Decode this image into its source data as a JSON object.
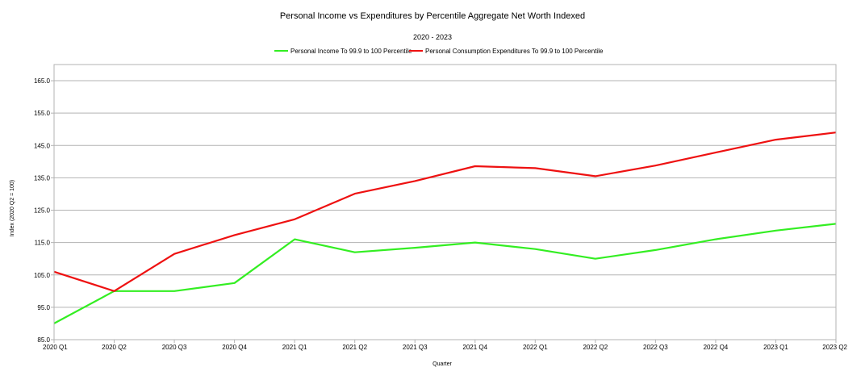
{
  "chart_data": {
    "type": "line",
    "title": "Personal Income vs Expenditures by Percentile Aggregate Net Worth Indexed",
    "subtitle": "2020 - 2023",
    "xlabel": "Quarter",
    "ylabel": "Index (2020 Q2 = 100)",
    "ylim": [
      85,
      170
    ],
    "yticks": [
      "85.0",
      "95.0",
      "105.0",
      "115.0",
      "125.0",
      "135.0",
      "145.0",
      "155.0",
      "165.0"
    ],
    "grid": true,
    "legend_position": "top",
    "categories": [
      "2020 Q1",
      "2020 Q2",
      "2020 Q3",
      "2020 Q4",
      "2021 Q1",
      "2021 Q2",
      "2021 Q3",
      "2021 Q4",
      "2022 Q1",
      "2022 Q2",
      "2022 Q3",
      "2022 Q4",
      "2023 Q1",
      "2023 Q2"
    ],
    "series": [
      {
        "name": "Personal Income To 99.9 to 100 Percentile",
        "color": "#33ee22",
        "values": [
          90,
          100,
          100,
          102.5,
          116,
          112,
          113.4,
          115,
          113,
          110,
          112.7,
          116,
          118.7,
          120.8
        ]
      },
      {
        "name": "Personal Consumption Expenditures To 99.9 to 100 Percentile",
        "color": "#ee1111",
        "values": [
          106,
          100,
          111.5,
          117.3,
          122.2,
          130.1,
          134,
          138.6,
          138,
          135.5,
          138.8,
          142.8,
          146.8,
          149
        ]
      }
    ]
  }
}
